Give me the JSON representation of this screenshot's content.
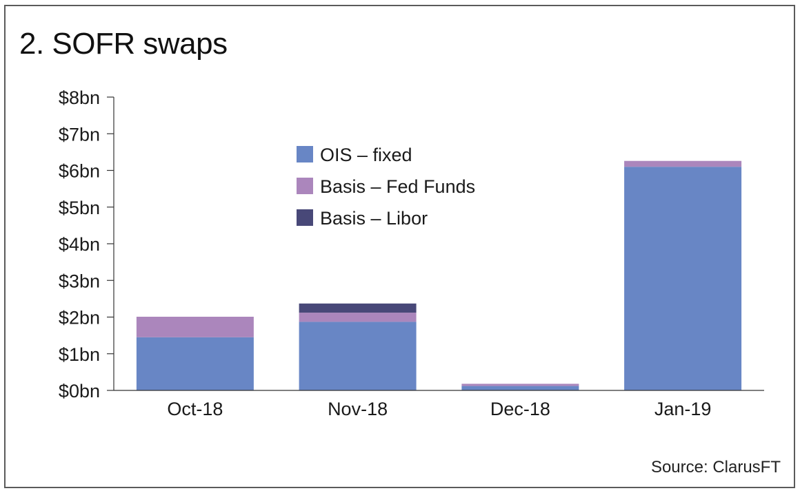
{
  "title": "2. SOFR swaps",
  "source": "Source: ClarusFT",
  "chart_data": {
    "type": "bar",
    "stacked": true,
    "categories": [
      "Oct-18",
      "Nov-18",
      "Dec-18",
      "Jan-19"
    ],
    "series": [
      {
        "name": "OIS – fixed",
        "color": "#6886c5",
        "values": [
          1.45,
          1.87,
          0.12,
          6.1
        ]
      },
      {
        "name": "Basis – Fed Funds",
        "color": "#ab86bc",
        "values": [
          0.56,
          0.25,
          0.06,
          0.16
        ]
      },
      {
        "name": "Basis – Libor",
        "color": "#484878",
        "values": [
          0.0,
          0.25,
          0.0,
          0.0
        ]
      }
    ],
    "ylim": [
      0,
      8
    ],
    "yticks": [
      0,
      1,
      2,
      3,
      4,
      5,
      6,
      7,
      8
    ],
    "ytick_labels": [
      "$0bn",
      "$1bn",
      "$2bn",
      "$3bn",
      "$4bn",
      "$5bn",
      "$6bn",
      "$7bn",
      "$8bn"
    ],
    "xlabel": "",
    "ylabel": "",
    "legend_position": "top-center",
    "grid": false
  }
}
